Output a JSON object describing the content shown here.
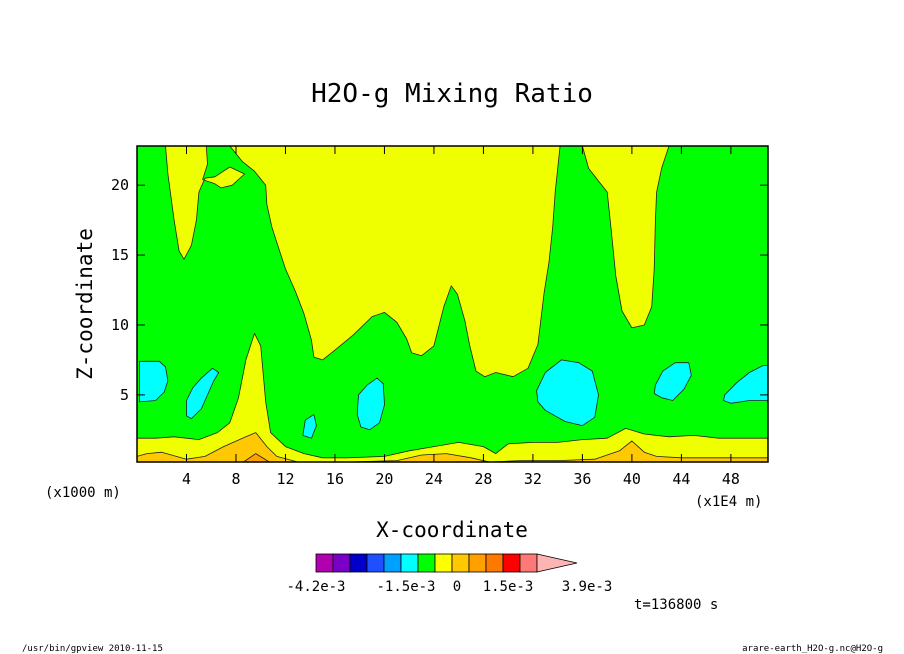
{
  "chart_data": {
    "type": "heatmap",
    "title": "H2O-g Mixing Ratio",
    "xlabel": "X-coordinate",
    "ylabel": "Z-coordinate",
    "x_unit": "(x1E4 m)",
    "y_unit": "(x1000 m)",
    "xlim": [
      0,
      51
    ],
    "ylim": [
      0.2,
      22.8
    ],
    "x_ticks": [
      4,
      8,
      12,
      16,
      20,
      24,
      28,
      32,
      36,
      40,
      44,
      48
    ],
    "y_ticks": [
      5,
      10,
      15,
      20
    ],
    "colorbar": {
      "colors": [
        "#b000b0",
        "#7a00c8",
        "#0000c8",
        "#1e50ff",
        "#00a0ff",
        "#00ffff",
        "#00ff00",
        "#ffff00",
        "#ffc800",
        "#ffa000",
        "#ff7800",
        "#ff0000",
        "#ff7878",
        "#ffb4b4"
      ],
      "labels": [
        "-4.2e-3",
        "-1.5e-3",
        "0",
        "1.5e-3",
        "3.9e-3"
      ]
    },
    "colors": {
      "cyan": "#00ffff",
      "green": "#00ff00",
      "yellow": "#f0ff00",
      "gold": "#ffc800",
      "orange": "#ffa000"
    },
    "time_label": "t=136800 s",
    "footer_left": "/usr/bin/gpview  2010-11-15",
    "footer_right": "arare-earth_H2O-g.nc@H2O-g",
    "regions": [
      {
        "color": "yellow",
        "points": [
          [
            0,
            0.2
          ],
          [
            51,
            0.2
          ],
          [
            51,
            1.9
          ],
          [
            47,
            1.9
          ],
          [
            45,
            2.1
          ],
          [
            43,
            2.0
          ],
          [
            41,
            2.2
          ],
          [
            39.5,
            2.6
          ],
          [
            38,
            1.9
          ],
          [
            36,
            1.8
          ],
          [
            34,
            1.6
          ],
          [
            32,
            1.6
          ],
          [
            30,
            1.5
          ],
          [
            29,
            0.8
          ],
          [
            28,
            1.3
          ],
          [
            26,
            1.6
          ],
          [
            24,
            1.3
          ],
          [
            22,
            1.0
          ],
          [
            20,
            0.6
          ],
          [
            17,
            0.5
          ],
          [
            15,
            0.5
          ],
          [
            13.5,
            0.8
          ],
          [
            12,
            1.3
          ],
          [
            10.8,
            2.3
          ],
          [
            10.4,
            4.5
          ],
          [
            10,
            8.5
          ],
          [
            9.5,
            9.4
          ],
          [
            8.8,
            7.5
          ],
          [
            8.2,
            4.8
          ],
          [
            7.5,
            3.0
          ],
          [
            6.5,
            2.3
          ],
          [
            5,
            1.8
          ],
          [
            3,
            2.0
          ],
          [
            1.5,
            1.9
          ],
          [
            0,
            1.9
          ]
        ]
      },
      {
        "color": "gold",
        "points": [
          [
            0,
            0.2
          ],
          [
            51,
            0.2
          ],
          [
            51,
            0.5
          ],
          [
            46,
            0.5
          ],
          [
            44,
            0.5
          ],
          [
            42,
            0.6
          ],
          [
            41,
            0.9
          ],
          [
            40,
            1.7
          ],
          [
            39,
            1.0
          ],
          [
            37,
            0.4
          ],
          [
            34,
            0.3
          ],
          [
            31,
            0.3
          ],
          [
            28.5,
            0.2
          ],
          [
            27,
            0.5
          ],
          [
            25,
            0.8
          ],
          [
            23,
            0.7
          ],
          [
            21,
            0.3
          ],
          [
            17,
            0.2
          ],
          [
            13,
            0.2
          ],
          [
            11.3,
            0.6
          ],
          [
            10.5,
            1.3
          ],
          [
            9.6,
            2.3
          ],
          [
            8.8,
            2.0
          ],
          [
            7,
            1.3
          ],
          [
            5.5,
            0.6
          ],
          [
            4,
            0.4
          ],
          [
            2,
            0.9
          ],
          [
            0.8,
            0.8
          ],
          [
            0,
            0.6
          ]
        ]
      },
      {
        "color": "orange",
        "points": [
          [
            8.6,
            0.2
          ],
          [
            9.6,
            0.8
          ],
          [
            10.7,
            0.2
          ]
        ]
      },
      {
        "color": "yellow",
        "points": [
          [
            2.3,
            22.8
          ],
          [
            2.5,
            20.8
          ],
          [
            3.0,
            17.5
          ],
          [
            3.4,
            15.3
          ],
          [
            3.8,
            14.7
          ],
          [
            4.4,
            15.7
          ],
          [
            4.8,
            17.5
          ],
          [
            5.0,
            19.5
          ],
          [
            5.5,
            20.5
          ],
          [
            6.3,
            20.6
          ],
          [
            7.5,
            21.3
          ],
          [
            8.7,
            20.8
          ],
          [
            7.7,
            20.0
          ],
          [
            6.8,
            19.8
          ],
          [
            6.3,
            20.1
          ],
          [
            5.3,
            20.4
          ],
          [
            5.7,
            21.5
          ],
          [
            5.6,
            22.8
          ]
        ]
      },
      {
        "color": "yellow",
        "points": [
          [
            7.5,
            22.8
          ],
          [
            8.5,
            21.7
          ],
          [
            9.5,
            21.0
          ],
          [
            10.4,
            20.0
          ],
          [
            10.5,
            18.6
          ],
          [
            10.9,
            17.0
          ],
          [
            11.3,
            15.9
          ],
          [
            12,
            14.0
          ],
          [
            12.8,
            12.4
          ],
          [
            13.5,
            10.8
          ],
          [
            14.1,
            8.9
          ],
          [
            14.3,
            7.7
          ],
          [
            15.0,
            7.5
          ],
          [
            16,
            8.2
          ],
          [
            17.5,
            9.3
          ],
          [
            19,
            10.6
          ],
          [
            20,
            10.9
          ],
          [
            21,
            10.2
          ],
          [
            21.8,
            9.0
          ],
          [
            22.2,
            8.0
          ],
          [
            23.0,
            7.8
          ],
          [
            24,
            8.5
          ],
          [
            24.8,
            11.3
          ],
          [
            25.4,
            12.8
          ],
          [
            25.9,
            12.2
          ],
          [
            26.5,
            10.3
          ],
          [
            26.9,
            8.5
          ],
          [
            27.4,
            6.7
          ],
          [
            28.1,
            6.3
          ],
          [
            29,
            6.6
          ],
          [
            30.4,
            6.3
          ],
          [
            31.6,
            6.9
          ],
          [
            32.4,
            8.6
          ],
          [
            32.9,
            12.3
          ],
          [
            33.3,
            14.5
          ],
          [
            33.6,
            17.0
          ],
          [
            33.8,
            19.5
          ],
          [
            34.2,
            22.8
          ]
        ]
      },
      {
        "color": "yellow",
        "points": [
          [
            36.0,
            22.8
          ],
          [
            36.5,
            21.2
          ],
          [
            38.0,
            19.5
          ],
          [
            38.3,
            17.0
          ],
          [
            38.7,
            13.5
          ],
          [
            39.2,
            11.0
          ],
          [
            40.0,
            9.8
          ],
          [
            41.0,
            10.0
          ],
          [
            41.6,
            11.3
          ],
          [
            41.8,
            14.0
          ],
          [
            41.9,
            17.5
          ],
          [
            42.0,
            19.5
          ],
          [
            42.4,
            21.2
          ],
          [
            43.0,
            22.8
          ]
        ]
      },
      {
        "color": "cyan",
        "points": [
          [
            0.2,
            7.4
          ],
          [
            1.8,
            7.4
          ],
          [
            2.3,
            7.0
          ],
          [
            2.5,
            6.0
          ],
          [
            2.2,
            5.2
          ],
          [
            1.5,
            4.6
          ],
          [
            0.2,
            4.5
          ]
        ]
      },
      {
        "color": "cyan",
        "points": [
          [
            4.4,
            3.3
          ],
          [
            5.2,
            4.0
          ],
          [
            6.2,
            6.0
          ],
          [
            6.6,
            6.6
          ],
          [
            6.1,
            6.9
          ],
          [
            5.2,
            6.2
          ],
          [
            4.5,
            5.5
          ],
          [
            4.0,
            4.6
          ],
          [
            4.0,
            3.5
          ]
        ]
      },
      {
        "color": "cyan",
        "points": [
          [
            13.6,
            3.2
          ],
          [
            14.3,
            3.6
          ],
          [
            14.5,
            2.8
          ],
          [
            14.1,
            1.9
          ],
          [
            13.4,
            2.1
          ]
        ]
      },
      {
        "color": "cyan",
        "points": [
          [
            17.9,
            5.0
          ],
          [
            18.6,
            5.7
          ],
          [
            19.4,
            6.2
          ],
          [
            19.9,
            5.8
          ],
          [
            20.0,
            4.3
          ],
          [
            19.6,
            3.0
          ],
          [
            18.8,
            2.5
          ],
          [
            18.1,
            2.7
          ],
          [
            17.8,
            3.6
          ]
        ]
      },
      {
        "color": "cyan",
        "points": [
          [
            32.3,
            5.3
          ],
          [
            33.0,
            6.6
          ],
          [
            34.3,
            7.5
          ],
          [
            35.7,
            7.3
          ],
          [
            36.8,
            6.7
          ],
          [
            37.3,
            5.0
          ],
          [
            37.0,
            3.4
          ],
          [
            36.0,
            2.8
          ],
          [
            34.6,
            3.1
          ],
          [
            33.0,
            3.9
          ],
          [
            32.4,
            4.5
          ]
        ]
      },
      {
        "color": "cyan",
        "points": [
          [
            41.9,
            5.7
          ],
          [
            42.5,
            6.7
          ],
          [
            43.5,
            7.3
          ],
          [
            44.6,
            7.3
          ],
          [
            44.8,
            6.4
          ],
          [
            44.2,
            5.4
          ],
          [
            43.3,
            4.6
          ],
          [
            42.4,
            4.8
          ],
          [
            41.8,
            5.1
          ]
        ]
      },
      {
        "color": "cyan",
        "points": [
          [
            47.5,
            5.0
          ],
          [
            48.5,
            5.9
          ],
          [
            49.5,
            6.6
          ],
          [
            50.6,
            7.1
          ],
          [
            51,
            7.1
          ],
          [
            51,
            4.6
          ],
          [
            49.5,
            4.6
          ],
          [
            48.0,
            4.4
          ],
          [
            47.4,
            4.6
          ]
        ]
      }
    ]
  }
}
